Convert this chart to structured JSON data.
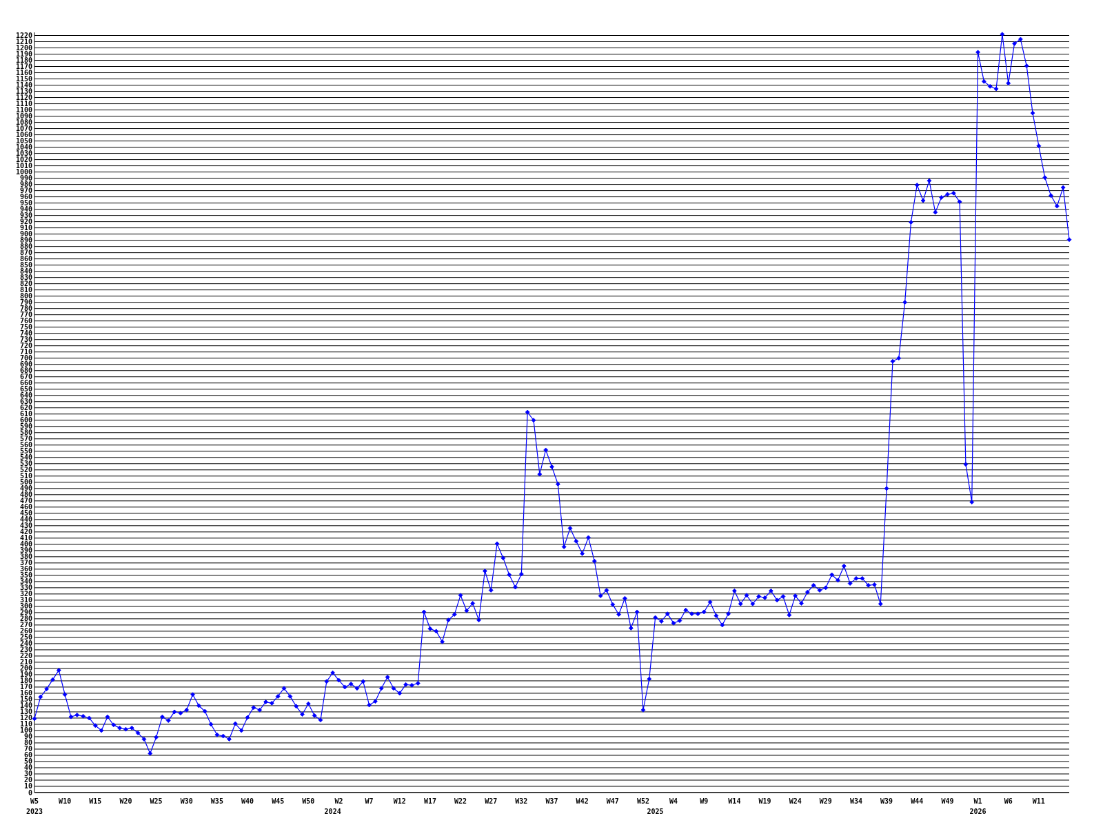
{
  "chart_data": {
    "type": "line",
    "categories": [
      "W5\n2023",
      null,
      null,
      null,
      null,
      "W10",
      null,
      null,
      null,
      null,
      "W15",
      null,
      null,
      null,
      null,
      "W20",
      null,
      null,
      null,
      null,
      "W25",
      null,
      null,
      null,
      null,
      "W30",
      null,
      null,
      null,
      null,
      "W35",
      null,
      null,
      null,
      null,
      "W40",
      null,
      null,
      null,
      null,
      "W45",
      null,
      null,
      null,
      null,
      "W50",
      null,
      null,
      null,
      "\n2024",
      "W2",
      null,
      null,
      null,
      null,
      "W7",
      null,
      null,
      null,
      null,
      "W12",
      null,
      null,
      null,
      null,
      "W17",
      null,
      null,
      null,
      null,
      "W22",
      null,
      null,
      null,
      null,
      "W27",
      null,
      null,
      null,
      null,
      "W32",
      null,
      null,
      null,
      null,
      "W37",
      null,
      null,
      null,
      null,
      "W42",
      null,
      null,
      null,
      null,
      "W47",
      null,
      null,
      null,
      null,
      "W52",
      null,
      "\n2025",
      null,
      null,
      "W4",
      null,
      null,
      null,
      null,
      "W9",
      null,
      null,
      null,
      null,
      "W14",
      null,
      null,
      null,
      null,
      "W19",
      null,
      null,
      null,
      null,
      "W24",
      null,
      null,
      null,
      null,
      "W29",
      null,
      null,
      null,
      null,
      "W34",
      null,
      null,
      null,
      null,
      "W39",
      null,
      null,
      null,
      null,
      "W44",
      null,
      null,
      null,
      null,
      "W49",
      null,
      null,
      null,
      null,
      "W1\n2026",
      null,
      null,
      null,
      null,
      "W6",
      null,
      null,
      null,
      null,
      "W11",
      null,
      null,
      null,
      null,
      null
    ],
    "series": [
      {
        "color": "#0000ff",
        "values": [
          119,
          154,
          167,
          182,
          197,
          158,
          122,
          125,
          123,
          120,
          108,
          100,
          122,
          109,
          104,
          102,
          104,
          96,
          86,
          63,
          89,
          122,
          116,
          130,
          128,
          133,
          158,
          140,
          131,
          110,
          93,
          91,
          86,
          111,
          100,
          121,
          137,
          133,
          146,
          144,
          155,
          168,
          155,
          139,
          126,
          143,
          124,
          117,
          179,
          193,
          181,
          170,
          175,
          168,
          179,
          141,
          147,
          168,
          186,
          168,
          160,
          174,
          173,
          176,
          291,
          264,
          260,
          243,
          278,
          287,
          318,
          293,
          305,
          278,
          357,
          326,
          401,
          378,
          351,
          331,
          352,
          613,
          600,
          513,
          552,
          525,
          497,
          396,
          426,
          405,
          385,
          411,
          373,
          317,
          326,
          303,
          287,
          313,
          265,
          291,
          133,
          183,
          282,
          276,
          288,
          273,
          277,
          294,
          288,
          288,
          291,
          307,
          285,
          270,
          288,
          325,
          304,
          318,
          304,
          316,
          314,
          325,
          310,
          316,
          286,
          317,
          305,
          323,
          334,
          326,
          330,
          351,
          342,
          365,
          337,
          345,
          345,
          334,
          335,
          304,
          490,
          695,
          700,
          790,
          919,
          979,
          954,
          986,
          935,
          959,
          964,
          966,
          952,
          529,
          468,
          1193,
          1146,
          1138,
          1134,
          1222,
          1143,
          1207,
          1214,
          1171,
          1095,
          1042,
          991,
          962,
          945,
          975,
          891
        ]
      }
    ],
    "ylim": [
      0,
      1225
    ],
    "yticks": [
      0,
      10,
      20,
      30,
      40,
      50,
      60,
      70,
      80,
      90,
      100,
      110,
      120,
      130,
      140,
      150,
      160,
      170,
      180,
      190,
      200,
      210,
      220,
      230,
      240,
      250,
      260,
      270,
      280,
      290,
      300,
      310,
      320,
      330,
      340,
      350,
      360,
      370,
      380,
      390,
      400,
      410,
      420,
      430,
      440,
      450,
      460,
      470,
      480,
      490,
      500,
      510,
      520,
      530,
      540,
      550,
      560,
      570,
      580,
      590,
      600,
      610,
      620,
      630,
      640,
      650,
      660,
      670,
      680,
      690,
      700,
      710,
      720,
      730,
      740,
      750,
      760,
      770,
      780,
      790,
      800,
      810,
      820,
      830,
      840,
      850,
      860,
      870,
      880,
      890,
      900,
      910,
      920,
      930,
      940,
      950,
      960,
      970,
      980,
      990,
      1000,
      1010,
      1020,
      1030,
      1040,
      1050,
      1060,
      1070,
      1080,
      1090,
      1100,
      1110,
      1120,
      1130,
      1140,
      1150,
      1160,
      1170,
      1180,
      1190,
      1200,
      1210,
      1220
    ],
    "grid": "y",
    "marker": "diamond",
    "line_style": "solid"
  }
}
